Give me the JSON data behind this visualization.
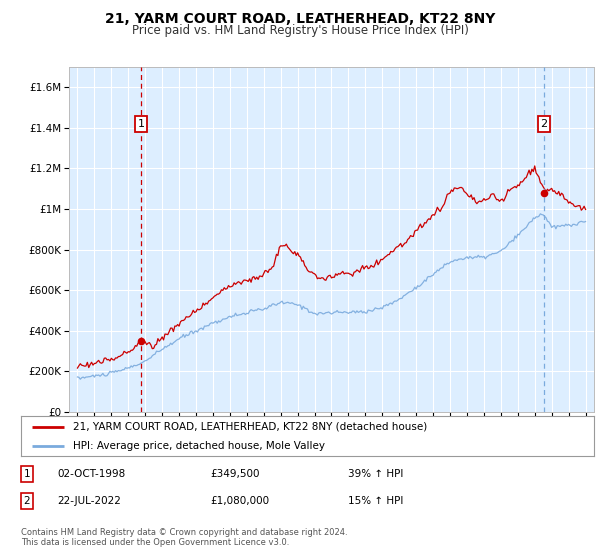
{
  "title": "21, YARM COURT ROAD, LEATHERHEAD, KT22 8NY",
  "subtitle": "Price paid vs. HM Land Registry's House Price Index (HPI)",
  "legend_line1": "21, YARM COURT ROAD, LEATHERHEAD, KT22 8NY (detached house)",
  "legend_line2": "HPI: Average price, detached house, Mole Valley",
  "annotation1_date": "02-OCT-1998",
  "annotation1_price": "£349,500",
  "annotation1_hpi": "39% ↑ HPI",
  "annotation1_year": 1998.75,
  "annotation1_value": 349500,
  "annotation2_date": "22-JUL-2022",
  "annotation2_price": "£1,080,000",
  "annotation2_hpi": "15% ↑ HPI",
  "annotation2_year": 2022.55,
  "annotation2_value": 1080000,
  "price_color": "#cc0000",
  "hpi_color": "#7aaadd",
  "bg_color": "#ffffff",
  "plot_bg_color": "#ddeeff",
  "grid_color": "#ffffff",
  "ann1_vline_color": "#cc0000",
  "ann2_vline_color": "#7aaadd",
  "ylim_max": 1700000,
  "yticks": [
    0,
    200000,
    400000,
    600000,
    800000,
    1000000,
    1200000,
    1400000,
    1600000
  ],
  "ytick_labels": [
    "£0",
    "£200K",
    "£400K",
    "£600K",
    "£800K",
    "£1M",
    "£1.2M",
    "£1.4M",
    "£1.6M"
  ],
  "footer": "Contains HM Land Registry data © Crown copyright and database right 2024.\nThis data is licensed under the Open Government Licence v3.0.",
  "xlim_start": 1994.5,
  "xlim_end": 2025.5
}
